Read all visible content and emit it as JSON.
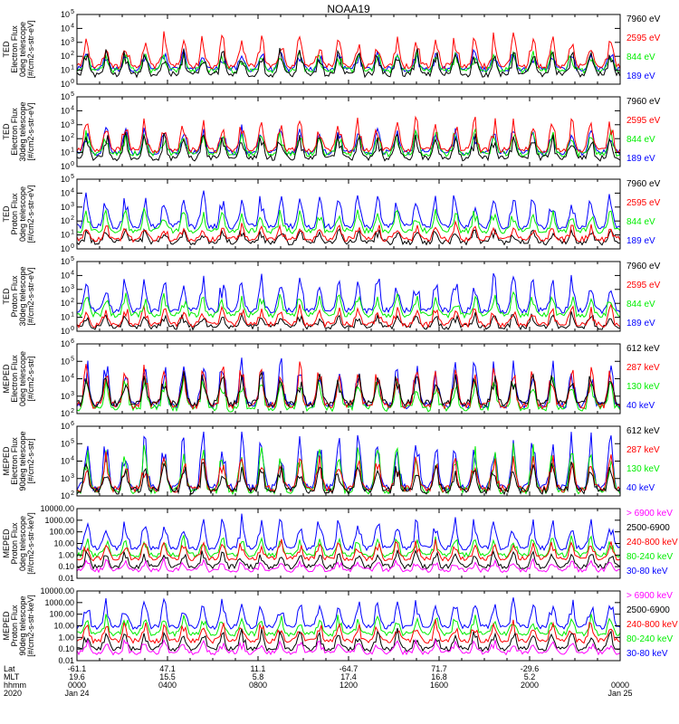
{
  "title": "NOAA19",
  "colors": {
    "black": "#000000",
    "red": "#ff0000",
    "green": "#00ee00",
    "blue": "#0000ff",
    "magenta": "#ff00ff"
  },
  "chart_data": [
    {
      "type": "line",
      "panel": "ted-electron-0deg",
      "ylabel": [
        "TED",
        "Electron Flux",
        "0deg telescope",
        "[#/cm2-s-str-eV]"
      ],
      "scale": "log",
      "ylim": [
        1,
        100000
      ],
      "yticks": [
        {
          "v": 1,
          "t": "10"
        },
        {
          "v": 10,
          "t": "10"
        },
        {
          "v": 100,
          "t": "10"
        },
        {
          "v": 1000,
          "t": "10"
        },
        {
          "v": 10000,
          "t": "10"
        },
        {
          "v": 100000,
          "t": "10"
        }
      ],
      "ytick_exponents": [
        "0",
        "1",
        "2",
        "3",
        "4",
        "5"
      ],
      "legend": [
        {
          "text": "7960 eV",
          "color": "#000000"
        },
        {
          "text": "2595 eV",
          "color": "#ff0000"
        },
        {
          "text": "844 eV",
          "color": "#00ee00"
        },
        {
          "text": "189 eV",
          "color": "#0000ff"
        }
      ],
      "series": [
        {
          "name": "189 eV",
          "color": "#0000ff",
          "base": 12,
          "peak": 300
        },
        {
          "name": "844 eV",
          "color": "#00ee00",
          "base": 10,
          "peak": 250
        },
        {
          "name": "2595 eV",
          "color": "#ff0000",
          "base": 20,
          "peak": 6000
        },
        {
          "name": "7960 eV",
          "color": "#000000",
          "base": 5,
          "peak": 400
        }
      ]
    },
    {
      "type": "line",
      "panel": "ted-electron-30deg",
      "ylabel": [
        "TED",
        "Electron Flux",
        "30deg telescope",
        "[#/cm2-s-str-eV]"
      ],
      "scale": "log",
      "ylim": [
        1,
        100000
      ],
      "yticks": [
        {
          "v": 1,
          "t": "10"
        },
        {
          "v": 10,
          "t": "10"
        },
        {
          "v": 100,
          "t": "10"
        },
        {
          "v": 1000,
          "t": "10"
        },
        {
          "v": 10000,
          "t": "10"
        },
        {
          "v": 100000,
          "t": "10"
        }
      ],
      "ytick_exponents": [
        "0",
        "1",
        "2",
        "3",
        "4",
        "5"
      ],
      "legend": [
        {
          "text": "7960 eV",
          "color": "#000000"
        },
        {
          "text": "2595 eV",
          "color": "#ff0000"
        },
        {
          "text": "844 eV",
          "color": "#00ee00"
        },
        {
          "text": "189 eV",
          "color": "#0000ff"
        }
      ],
      "series": [
        {
          "name": "189 eV",
          "color": "#0000ff",
          "base": 10,
          "peak": 800
        },
        {
          "name": "844 eV",
          "color": "#00ee00",
          "base": 8,
          "peak": 500
        },
        {
          "name": "2595 eV",
          "color": "#ff0000",
          "base": 15,
          "peak": 5000
        },
        {
          "name": "7960 eV",
          "color": "#000000",
          "base": 4,
          "peak": 300
        }
      ]
    },
    {
      "type": "line",
      "panel": "ted-proton-0deg",
      "ylabel": [
        "TED",
        "Proton Flux",
        "0deg telescope",
        "[#/cm2-s-str-eV]"
      ],
      "scale": "log",
      "ylim": [
        1,
        100000
      ],
      "yticks": [
        {
          "v": 1,
          "t": "10"
        },
        {
          "v": 10,
          "t": "10"
        },
        {
          "v": 100,
          "t": "10"
        },
        {
          "v": 1000,
          "t": "10"
        },
        {
          "v": 10000,
          "t": "10"
        },
        {
          "v": 100000,
          "t": "10"
        }
      ],
      "ytick_exponents": [
        "0",
        "1",
        "2",
        "3",
        "4",
        "5"
      ],
      "legend": [
        {
          "text": "7960 eV",
          "color": "#000000"
        },
        {
          "text": "2595 eV",
          "color": "#ff0000"
        },
        {
          "text": "844 eV",
          "color": "#00ee00"
        },
        {
          "text": "189 eV",
          "color": "#0000ff"
        }
      ],
      "series": [
        {
          "name": "7960 eV",
          "color": "#000000",
          "base": 3,
          "peak": 30
        },
        {
          "name": "2595 eV",
          "color": "#ff0000",
          "base": 5,
          "peak": 60
        },
        {
          "name": "189 eV",
          "color": "#0000ff",
          "base": 40,
          "peak": 20000
        },
        {
          "name": "844 eV",
          "color": "#00ee00",
          "base": 20,
          "peak": 800
        }
      ]
    },
    {
      "type": "line",
      "panel": "ted-proton-30deg",
      "ylabel": [
        "TED",
        "Proton Flux",
        "30deg telescope",
        "[#/cm2-s-str-eV]"
      ],
      "scale": "log",
      "ylim": [
        1,
        100000
      ],
      "yticks": [
        {
          "v": 1,
          "t": "10"
        },
        {
          "v": 10,
          "t": "10"
        },
        {
          "v": 100,
          "t": "10"
        },
        {
          "v": 1000,
          "t": "10"
        },
        {
          "v": 10000,
          "t": "10"
        },
        {
          "v": 100000,
          "t": "10"
        }
      ],
      "ytick_exponents": [
        "0",
        "1",
        "2",
        "3",
        "4",
        "5"
      ],
      "legend": [
        {
          "text": "7960 eV",
          "color": "#000000"
        },
        {
          "text": "2595 eV",
          "color": "#ff0000"
        },
        {
          "text": "844 eV",
          "color": "#00ee00"
        },
        {
          "text": "189 eV",
          "color": "#0000ff"
        }
      ],
      "series": [
        {
          "name": "7960 eV",
          "color": "#000000",
          "base": 2,
          "peak": 20
        },
        {
          "name": "2595 eV",
          "color": "#ff0000",
          "base": 3,
          "peak": 80
        },
        {
          "name": "189 eV",
          "color": "#0000ff",
          "base": 30,
          "peak": 15000
        },
        {
          "name": "844 eV",
          "color": "#00ee00",
          "base": 15,
          "peak": 600
        }
      ]
    },
    {
      "type": "line",
      "panel": "meped-electron-0deg",
      "ylabel": [
        "MEPED",
        "Electron Flux",
        "0deg telescope",
        "[#/cm2-s-str]"
      ],
      "scale": "log",
      "ylim": [
        100,
        1000000
      ],
      "yticks": [
        {
          "v": 100,
          "t": "10"
        },
        {
          "v": 1000,
          "t": "10"
        },
        {
          "v": 10000,
          "t": "10"
        },
        {
          "v": 100000,
          "t": "10"
        },
        {
          "v": 1000000,
          "t": "10"
        }
      ],
      "ytick_exponents": [
        "2",
        "3",
        "4",
        "5",
        "6"
      ],
      "legend": [
        {
          "text": "612 keV",
          "color": "#000000"
        },
        {
          "text": "287 keV",
          "color": "#ff0000"
        },
        {
          "text": "130 keV",
          "color": "#00ee00"
        },
        {
          "text": "40 keV",
          "color": "#0000ff"
        }
      ],
      "series": [
        {
          "name": "40 keV",
          "color": "#0000ff",
          "base": 300,
          "peak": 300000
        },
        {
          "name": "130 keV",
          "color": "#00ee00",
          "base": 200,
          "peak": 20000
        },
        {
          "name": "287 keV",
          "color": "#ff0000",
          "base": 300,
          "peak": 100000
        },
        {
          "name": "612 keV",
          "color": "#000000",
          "base": 400,
          "peak": 30000
        }
      ]
    },
    {
      "type": "line",
      "panel": "meped-electron-90deg",
      "ylabel": [
        "MEPED",
        "Electron Flux",
        "90deg telescope",
        "[#/cm2-s-str]"
      ],
      "scale": "log",
      "ylim": [
        100,
        1000000
      ],
      "yticks": [
        {
          "v": 100,
          "t": "10"
        },
        {
          "v": 1000,
          "t": "10"
        },
        {
          "v": 10000,
          "t": "10"
        },
        {
          "v": 100000,
          "t": "10"
        },
        {
          "v": 1000000,
          "t": "10"
        }
      ],
      "ytick_exponents": [
        "2",
        "3",
        "4",
        "5",
        "6"
      ],
      "legend": [
        {
          "text": "612 keV",
          "color": "#000000"
        },
        {
          "text": "287 keV",
          "color": "#ff0000"
        },
        {
          "text": "130 keV",
          "color": "#00ee00"
        },
        {
          "text": "40 keV",
          "color": "#0000ff"
        }
      ],
      "series": [
        {
          "name": "40 keV",
          "color": "#0000ff",
          "base": 300,
          "peak": 500000
        },
        {
          "name": "130 keV",
          "color": "#00ee00",
          "base": 200,
          "peak": 100000
        },
        {
          "name": "287 keV",
          "color": "#ff0000",
          "base": 250,
          "peak": 30000
        },
        {
          "name": "612 keV",
          "color": "#000000",
          "base": 200,
          "peak": 10000
        }
      ]
    },
    {
      "type": "line",
      "panel": "meped-proton-0deg",
      "ylabel": [
        "MEPED",
        "Proton Flux",
        "0deg telescope",
        "[#/cm2-s-str-keV]"
      ],
      "scale": "log",
      "ylim": [
        0.01,
        10000
      ],
      "yticks": [
        {
          "v": 0.01,
          "t": "0.01"
        },
        {
          "v": 0.1,
          "t": "0.10"
        },
        {
          "v": 1,
          "t": "1.00"
        },
        {
          "v": 10,
          "t": "10.00"
        },
        {
          "v": 100,
          "t": "100.00"
        },
        {
          "v": 1000,
          "t": "1000.00"
        },
        {
          "v": 10000,
          "t": "10000.00"
        }
      ],
      "legend": [
        {
          "text": "> 6900 keV",
          "color": "#ff00ff"
        },
        {
          "text": "2500-6900",
          "color": "#000000"
        },
        {
          "text": "240-800 keV",
          "color": "#ff0000"
        },
        {
          "text": "80-240 keV",
          "color": "#00ee00"
        },
        {
          "text": "30-80 keV",
          "color": "#0000ff"
        }
      ],
      "series": [
        {
          "name": "30-80 keV",
          "color": "#0000ff",
          "base": 4,
          "peak": 3000
        },
        {
          "name": "80-240 keV",
          "color": "#00ee00",
          "base": 1,
          "peak": 40
        },
        {
          "name": "240-800 keV",
          "color": "#ff0000",
          "base": 0.5,
          "peak": 20
        },
        {
          "name": "2500-6900",
          "color": "#000000",
          "base": 0.1,
          "peak": 3
        },
        {
          "name": "> 6900 keV",
          "color": "#ff00ff",
          "base": 0.05,
          "peak": 0.5
        }
      ]
    },
    {
      "type": "line",
      "panel": "meped-proton-90deg",
      "ylabel": [
        "MEPED",
        "Proton Flux",
        "90deg telescope",
        "[#/cm2-s-str-keV]"
      ],
      "scale": "log",
      "ylim": [
        0.01,
        10000
      ],
      "yticks": [
        {
          "v": 0.01,
          "t": "0.01"
        },
        {
          "v": 0.1,
          "t": "0.10"
        },
        {
          "v": 1,
          "t": "1.00"
        },
        {
          "v": 10,
          "t": "10.00"
        },
        {
          "v": 100,
          "t": "100.00"
        },
        {
          "v": 1000,
          "t": "1000.00"
        },
        {
          "v": 10000,
          "t": "10000.00"
        }
      ],
      "legend": [
        {
          "text": "> 6900 keV",
          "color": "#ff00ff"
        },
        {
          "text": "2500-6900",
          "color": "#000000"
        },
        {
          "text": "240-800 keV",
          "color": "#ff0000"
        },
        {
          "text": "80-240 keV",
          "color": "#00ee00"
        },
        {
          "text": "30-80 keV",
          "color": "#0000ff"
        }
      ],
      "series": [
        {
          "name": "30-80 keV",
          "color": "#0000ff",
          "base": 8,
          "peak": 4000
        },
        {
          "name": "80-240 keV",
          "color": "#00ee00",
          "base": 2,
          "peak": 100
        },
        {
          "name": "240-800 keV",
          "color": "#ff0000",
          "base": 0.5,
          "peak": 30
        },
        {
          "name": "2500-6900",
          "color": "#000000",
          "base": 0.1,
          "peak": 5
        },
        {
          "name": "> 6900 keV",
          "color": "#ff00ff",
          "base": 0.05,
          "peak": 0.6
        }
      ]
    }
  ],
  "xaxis": {
    "row_labels": [
      "Lat",
      "MLT",
      "hhmm",
      "2020"
    ],
    "ticks": [
      {
        "frac": 0.0,
        "lat": "-61.1",
        "mlt": "19.6",
        "hhmm": "0000",
        "date": "Jan 24"
      },
      {
        "frac": 0.1667,
        "lat": "47.1",
        "mlt": "15.5",
        "hhmm": "0400",
        "date": ""
      },
      {
        "frac": 0.3333,
        "lat": "11.1",
        "mlt": "5.8",
        "hhmm": "0800",
        "date": ""
      },
      {
        "frac": 0.5,
        "lat": "-64.7",
        "mlt": "17.4",
        "hhmm": "1200",
        "date": ""
      },
      {
        "frac": 0.6667,
        "lat": "71.7",
        "mlt": "16.8",
        "hhmm": "1600",
        "date": ""
      },
      {
        "frac": 0.8333,
        "lat": "-29.6",
        "mlt": "5.2",
        "hhmm": "2000",
        "date": ""
      },
      {
        "frac": 1.0,
        "lat": "",
        "mlt": "",
        "hhmm": "0000",
        "date": "Jan 25"
      }
    ]
  }
}
